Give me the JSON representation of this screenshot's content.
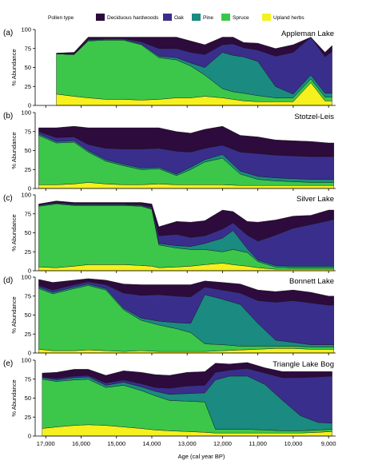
{
  "legend": {
    "title": "Pollen type",
    "items": [
      {
        "label": "Deciduous hardwoods",
        "color": "#2d0b3c"
      },
      {
        "label": "Oak",
        "color": "#3a2e8c"
      },
      {
        "label": "Pine",
        "color": "#1b8a80"
      },
      {
        "label": "Spruce",
        "color": "#3cc74a"
      },
      {
        "label": "Upland herbs",
        "color": "#f5f01e"
      }
    ]
  },
  "x_axis": {
    "title": "Age (cal year BP)",
    "ticks": [
      "17,000",
      "16,000",
      "15,000",
      "14,000",
      "13,000",
      "12,000",
      "11,000",
      "10,000",
      "9,000"
    ]
  },
  "chart_data": [
    {
      "type": "area",
      "stacked": true,
      "letter": "(a)",
      "title": "Appleman Lake",
      "ylabel": "% Abundance",
      "ylim": [
        0,
        100
      ],
      "yticks": [
        "0",
        "25",
        "50",
        "75",
        "100"
      ],
      "xlim": [
        17300,
        8800
      ],
      "x_reversed": true,
      "x": [
        16700,
        16200,
        15800,
        15300,
        14800,
        14300,
        13800,
        13300,
        12900,
        12500,
        12000,
        11700,
        11400,
        11000,
        10500,
        10000,
        9500,
        9100,
        8900
      ],
      "series": [
        {
          "name": "Upland herbs",
          "values": [
            15,
            12,
            10,
            8,
            8,
            7,
            8,
            10,
            10,
            12,
            10,
            8,
            6,
            5,
            5,
            5,
            30,
            6,
            6
          ]
        },
        {
          "name": "Spruce",
          "values": [
            53,
            55,
            75,
            78,
            78,
            73,
            55,
            50,
            42,
            28,
            12,
            10,
            10,
            8,
            5,
            5,
            5,
            5,
            5
          ]
        },
        {
          "name": "Pine",
          "values": [
            0,
            0,
            1,
            1,
            1,
            1,
            2,
            3,
            4,
            10,
            48,
            48,
            48,
            45,
            15,
            5,
            5,
            5,
            5
          ]
        },
        {
          "name": "Oak",
          "values": [
            0,
            0,
            1,
            1,
            1,
            3,
            10,
            12,
            14,
            17,
            10,
            15,
            12,
            15,
            40,
            55,
            50,
            48,
            55
          ]
        },
        {
          "name": "Deciduous hardwoods",
          "values": [
            1,
            3,
            3,
            2,
            2,
            6,
            15,
            15,
            15,
            13,
            10,
            9,
            7,
            9,
            10,
            10,
            0,
            6,
            8
          ]
        }
      ]
    },
    {
      "type": "area",
      "stacked": true,
      "letter": "(b)",
      "title": "Stotzel-Leis",
      "ylabel": "% Abundance",
      "ylim": [
        0,
        100
      ],
      "yticks": [
        "0",
        "25",
        "50",
        "75",
        "100"
      ],
      "xlim": [
        17300,
        8800
      ],
      "x_reversed": true,
      "x": [
        17200,
        16700,
        16200,
        15800,
        15300,
        14800,
        14300,
        13800,
        13300,
        12900,
        12500,
        12000,
        11500,
        11000,
        10500,
        10000,
        9500,
        9000,
        8850
      ],
      "series": [
        {
          "name": "Upland herbs",
          "values": [
            5,
            5,
            6,
            8,
            6,
            5,
            5,
            6,
            5,
            5,
            5,
            5,
            4,
            4,
            4,
            4,
            4,
            4,
            4
          ]
        },
        {
          "name": "Spruce",
          "values": [
            65,
            55,
            55,
            40,
            30,
            25,
            20,
            20,
            12,
            20,
            30,
            35,
            15,
            8,
            6,
            5,
            4,
            4,
            4
          ]
        },
        {
          "name": "Pine",
          "values": [
            2,
            2,
            2,
            2,
            2,
            2,
            2,
            2,
            2,
            3,
            3,
            5,
            4,
            4,
            4,
            4,
            4,
            4,
            4
          ]
        },
        {
          "name": "Oak",
          "values": [
            3,
            5,
            5,
            8,
            15,
            20,
            25,
            25,
            30,
            20,
            15,
            12,
            25,
            30,
            30,
            30,
            30,
            30,
            30
          ]
        },
        {
          "name": "Deciduous hardwoods",
          "values": [
            5,
            13,
            14,
            22,
            27,
            28,
            28,
            27,
            26,
            25,
            25,
            25,
            22,
            22,
            20,
            20,
            20,
            18,
            18
          ]
        }
      ]
    },
    {
      "type": "area",
      "stacked": true,
      "letter": "(c)",
      "title": "Silver Lake",
      "ylabel": "% Abundance",
      "ylim": [
        0,
        100
      ],
      "yticks": [
        "0",
        "25",
        "50",
        "75",
        "100"
      ],
      "xlim": [
        17300,
        8800
      ],
      "x_reversed": true,
      "x": [
        17200,
        16700,
        16200,
        15800,
        15300,
        14800,
        14300,
        14000,
        13800,
        13300,
        12900,
        12500,
        12000,
        11700,
        11300,
        11000,
        10500,
        10000,
        9500,
        9000,
        8850
      ],
      "series": [
        {
          "name": "Upland herbs",
          "values": [
            5,
            4,
            6,
            8,
            8,
            8,
            7,
            6,
            4,
            5,
            6,
            8,
            10,
            8,
            6,
            4,
            2,
            2,
            2,
            2,
            2
          ]
        },
        {
          "name": "Spruce",
          "values": [
            80,
            84,
            80,
            78,
            78,
            78,
            78,
            75,
            30,
            25,
            22,
            20,
            15,
            20,
            18,
            8,
            3,
            2,
            2,
            2,
            2
          ]
        },
        {
          "name": "Pine",
          "values": [
            1,
            1,
            1,
            1,
            1,
            1,
            1,
            1,
            2,
            3,
            4,
            8,
            18,
            25,
            5,
            2,
            2,
            2,
            2,
            2,
            2
          ]
        },
        {
          "name": "Oak",
          "values": [
            1,
            1,
            1,
            1,
            1,
            1,
            1,
            2,
            10,
            15,
            12,
            10,
            12,
            10,
            18,
            25,
            40,
            50,
            55,
            60,
            62
          ]
        },
        {
          "name": "Deciduous hardwoods",
          "values": [
            1,
            2,
            2,
            2,
            2,
            2,
            3,
            4,
            12,
            17,
            20,
            20,
            25,
            15,
            18,
            25,
            20,
            16,
            12,
            14,
            12
          ]
        }
      ]
    },
    {
      "type": "area",
      "stacked": true,
      "letter": "(d)",
      "title": "Bonnett Lake",
      "ylabel": "% Abundance",
      "ylim": [
        0,
        100
      ],
      "yticks": [
        "0",
        "25",
        "50",
        "75",
        "100"
      ],
      "xlim": [
        17300,
        8800
      ],
      "x_reversed": true,
      "x": [
        17200,
        16800,
        16200,
        15800,
        15300,
        14800,
        14300,
        13800,
        13300,
        12900,
        12500,
        12000,
        11500,
        11000,
        10500,
        10000,
        9500,
        9000,
        8850
      ],
      "series": [
        {
          "name": "Upland herbs",
          "values": [
            5,
            3,
            3,
            4,
            3,
            2,
            3,
            2,
            2,
            2,
            2,
            3,
            4,
            5,
            6,
            6,
            5,
            5,
            5
          ]
        },
        {
          "name": "Spruce",
          "values": [
            80,
            75,
            82,
            85,
            80,
            55,
            40,
            35,
            30,
            25,
            10,
            8,
            5,
            4,
            3,
            3,
            3,
            3,
            3
          ]
        },
        {
          "name": "Pine",
          "values": [
            2,
            2,
            2,
            2,
            2,
            2,
            3,
            5,
            8,
            12,
            65,
            60,
            55,
            30,
            8,
            5,
            3,
            3,
            3
          ]
        },
        {
          "name": "Oak",
          "values": [
            2,
            3,
            3,
            3,
            5,
            20,
            30,
            35,
            35,
            35,
            10,
            12,
            15,
            30,
            50,
            55,
            55,
            52,
            52
          ]
        },
        {
          "name": "Deciduous hardwoods",
          "values": [
            8,
            10,
            6,
            4,
            6,
            12,
            14,
            13,
            15,
            16,
            8,
            10,
            12,
            14,
            14,
            14,
            14,
            12,
            12
          ]
        }
      ]
    },
    {
      "type": "area",
      "stacked": true,
      "letter": "(e)",
      "title": "Triangle Lake Bog",
      "ylabel": "% Abundance",
      "ylim": [
        0,
        100
      ],
      "yticks": [
        "0",
        "25",
        "50",
        "75",
        "100"
      ],
      "xlim": [
        17300,
        8800
      ],
      "x_reversed": true,
      "x": [
        17100,
        16700,
        16200,
        15800,
        15300,
        14800,
        14300,
        13900,
        13500,
        13000,
        12500,
        12200,
        11800,
        11300,
        10800,
        10300,
        9800,
        9300,
        8900
      ],
      "series": [
        {
          "name": "Upland herbs",
          "values": [
            10,
            12,
            14,
            15,
            14,
            12,
            10,
            8,
            7,
            6,
            5,
            4,
            4,
            4,
            4,
            4,
            4,
            5,
            6
          ]
        },
        {
          "name": "Spruce",
          "values": [
            65,
            60,
            60,
            60,
            50,
            55,
            50,
            45,
            40,
            40,
            40,
            5,
            5,
            5,
            4,
            3,
            3,
            3,
            3
          ]
        },
        {
          "name": "Pine",
          "values": [
            2,
            2,
            3,
            3,
            3,
            4,
            5,
            6,
            8,
            10,
            12,
            65,
            70,
            70,
            60,
            40,
            20,
            10,
            8
          ]
        },
        {
          "name": "Oak",
          "values": [
            1,
            2,
            2,
            2,
            3,
            3,
            4,
            5,
            8,
            10,
            10,
            10,
            8,
            10,
            15,
            30,
            50,
            60,
            62
          ]
        },
        {
          "name": "Deciduous hardwoods",
          "values": [
            5,
            8,
            9,
            8,
            10,
            12,
            15,
            17,
            17,
            18,
            18,
            12,
            8,
            8,
            7,
            8,
            8,
            7,
            6
          ]
        }
      ]
    }
  ]
}
